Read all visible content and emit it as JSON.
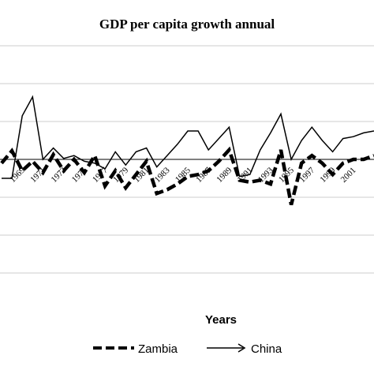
{
  "chart_data": {
    "type": "line",
    "title": "GDP per capita growth annual",
    "xlabel": "Years",
    "ylabel": "",
    "grid": true,
    "legend_position": "bottom",
    "x": [
      1967,
      1968,
      1969,
      1970,
      1971,
      1972,
      1973,
      1974,
      1975,
      1976,
      1977,
      1978,
      1979,
      1980,
      1981,
      1982,
      1983,
      1984,
      1985,
      1986,
      1987,
      1988,
      1989,
      1990,
      1991,
      1992,
      1993,
      1994,
      1995,
      1996,
      1997,
      1998,
      1999,
      2000,
      2001,
      2002,
      2003
    ],
    "tick_labels": [
      "1969",
      "1971",
      "1973",
      "1975",
      "1977",
      "1979",
      "1981",
      "1983",
      "1985",
      "1987",
      "1989",
      "1991",
      "1993",
      "1995",
      "1997",
      "1999",
      "2001"
    ],
    "series": [
      {
        "name": "Zambia",
        "style": "dashed-bold",
        "color": "#000000",
        "values": [
          -2.0,
          4.5,
          -6.0,
          -1.0,
          -7.0,
          2.5,
          -6.0,
          0.0,
          -7.0,
          2.0,
          -14.0,
          -6.0,
          -15.0,
          -8.0,
          -1.0,
          -18.0,
          -16.0,
          -13.0,
          -9.0,
          -8.0,
          -6.0,
          -1.0,
          5.0,
          -11.0,
          -12.0,
          -11.0,
          -13.0,
          5.0,
          -24.0,
          -2.0,
          2.0,
          -2.0,
          -8.0,
          -2.0,
          0.0,
          0.0,
          2.0
        ]
      },
      {
        "name": "China",
        "style": "solid",
        "color": "#000000",
        "values": [
          -10.0,
          -10.0,
          23.0,
          33.0,
          0.0,
          6.0,
          0.5,
          2.0,
          -1.0,
          -2.0,
          -5.0,
          4.0,
          -3.0,
          4.0,
          6.0,
          -4.0,
          2.0,
          8.0,
          15.0,
          15.0,
          5.0,
          11.0,
          17.0,
          -9.0,
          -8.0,
          5.0,
          14.0,
          24.0,
          0.0,
          10.0,
          17.0,
          10.0,
          4.0,
          11.0,
          12.0,
          14.0,
          15.0
        ]
      }
    ]
  }
}
